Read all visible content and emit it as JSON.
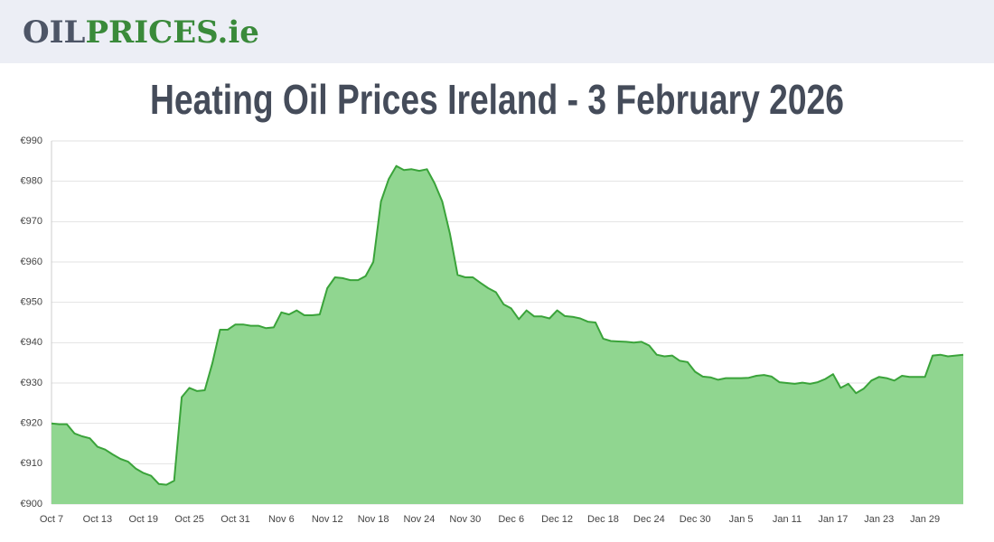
{
  "header": {
    "logo": [
      "OIL",
      "PRICES.ie"
    ]
  },
  "chart_data": {
    "type": "area",
    "title": "Heating Oil Prices Ireland - 3 February 2026",
    "color": "#3aa33a",
    "fill": "#90d690",
    "grid": true,
    "categories": [
      "Oct 7",
      null,
      null,
      null,
      null,
      null,
      "Oct 13",
      null,
      null,
      null,
      null,
      null,
      "Oct 19",
      null,
      null,
      null,
      null,
      null,
      "Oct 25",
      null,
      null,
      null,
      null,
      null,
      "Oct 31",
      null,
      null,
      null,
      null,
      null,
      "Nov 6",
      null,
      null,
      null,
      null,
      null,
      "Nov 12",
      null,
      null,
      null,
      null,
      null,
      "Nov 18",
      null,
      null,
      null,
      null,
      null,
      "Nov 24",
      null,
      null,
      null,
      null,
      null,
      "Nov 30",
      null,
      null,
      null,
      null,
      null,
      "Dec 6",
      null,
      null,
      null,
      null,
      null,
      "Dec 12",
      null,
      null,
      null,
      null,
      null,
      "Dec 18",
      null,
      null,
      null,
      null,
      null,
      "Dec 24",
      null,
      null,
      null,
      null,
      null,
      "Dec 30",
      null,
      null,
      null,
      null,
      null,
      "Jan 5",
      null,
      null,
      null,
      null,
      null,
      "Jan 11",
      null,
      null,
      null,
      null,
      null,
      "Jan 17",
      null,
      null,
      null,
      null,
      null,
      "Jan 23",
      null,
      null,
      null,
      null,
      null,
      "Jan 29",
      null,
      null,
      null,
      null,
      null
    ],
    "values": [
      920,
      919.8,
      919.8,
      917.5,
      916.8,
      916.3,
      914.2,
      913.5,
      912.3,
      911.2,
      910.5,
      908.8,
      907.7,
      907,
      905,
      904.8,
      905.8,
      926.5,
      928.8,
      928,
      928.2,
      935,
      943.2,
      943.2,
      944.5,
      944.5,
      944.2,
      944.2,
      943.6,
      943.8,
      947.5,
      947,
      948,
      946.8,
      946.8,
      947,
      953.5,
      956.2,
      956,
      955.5,
      955.5,
      956.5,
      960,
      975,
      980.5,
      983.8,
      982.8,
      983,
      982.6,
      983,
      979.5,
      975,
      967,
      956.8,
      956.2,
      956.2,
      954.8,
      953.5,
      952.5,
      949.5,
      948.5,
      945.8,
      948,
      946.5,
      946.5,
      946,
      948,
      946.6,
      946.4,
      946,
      945.2,
      945,
      941,
      940.4,
      940.3,
      940.2,
      940,
      940.2,
      939.3,
      937,
      936.6,
      936.8,
      935.5,
      935.2,
      932.8,
      931.6,
      931.4,
      930.8,
      931.2,
      931.2,
      931.2,
      931.3,
      931.8,
      932,
      931.6,
      930.2,
      930,
      929.8,
      930.1,
      929.8,
      930.2,
      931,
      932.2,
      928.8,
      929.8,
      927.5,
      928.6,
      930.6,
      931.5,
      931.2,
      930.6,
      931.8,
      931.5,
      931.5,
      931.5,
      936.8,
      937,
      936.6,
      936.8,
      937
    ],
    "ylim": [
      900,
      990
    ],
    "yticks": [
      {
        "value": 900,
        "label": "€900"
      },
      {
        "value": 910,
        "label": "€910"
      },
      {
        "value": 920,
        "label": "€920"
      },
      {
        "value": 930,
        "label": "€930"
      },
      {
        "value": 940,
        "label": "€940"
      },
      {
        "value": 950,
        "label": "€950"
      },
      {
        "value": 960,
        "label": "€960"
      },
      {
        "value": 970,
        "label": "€970"
      },
      {
        "value": 980,
        "label": "€980"
      },
      {
        "value": 990,
        "label": "€990"
      }
    ]
  }
}
